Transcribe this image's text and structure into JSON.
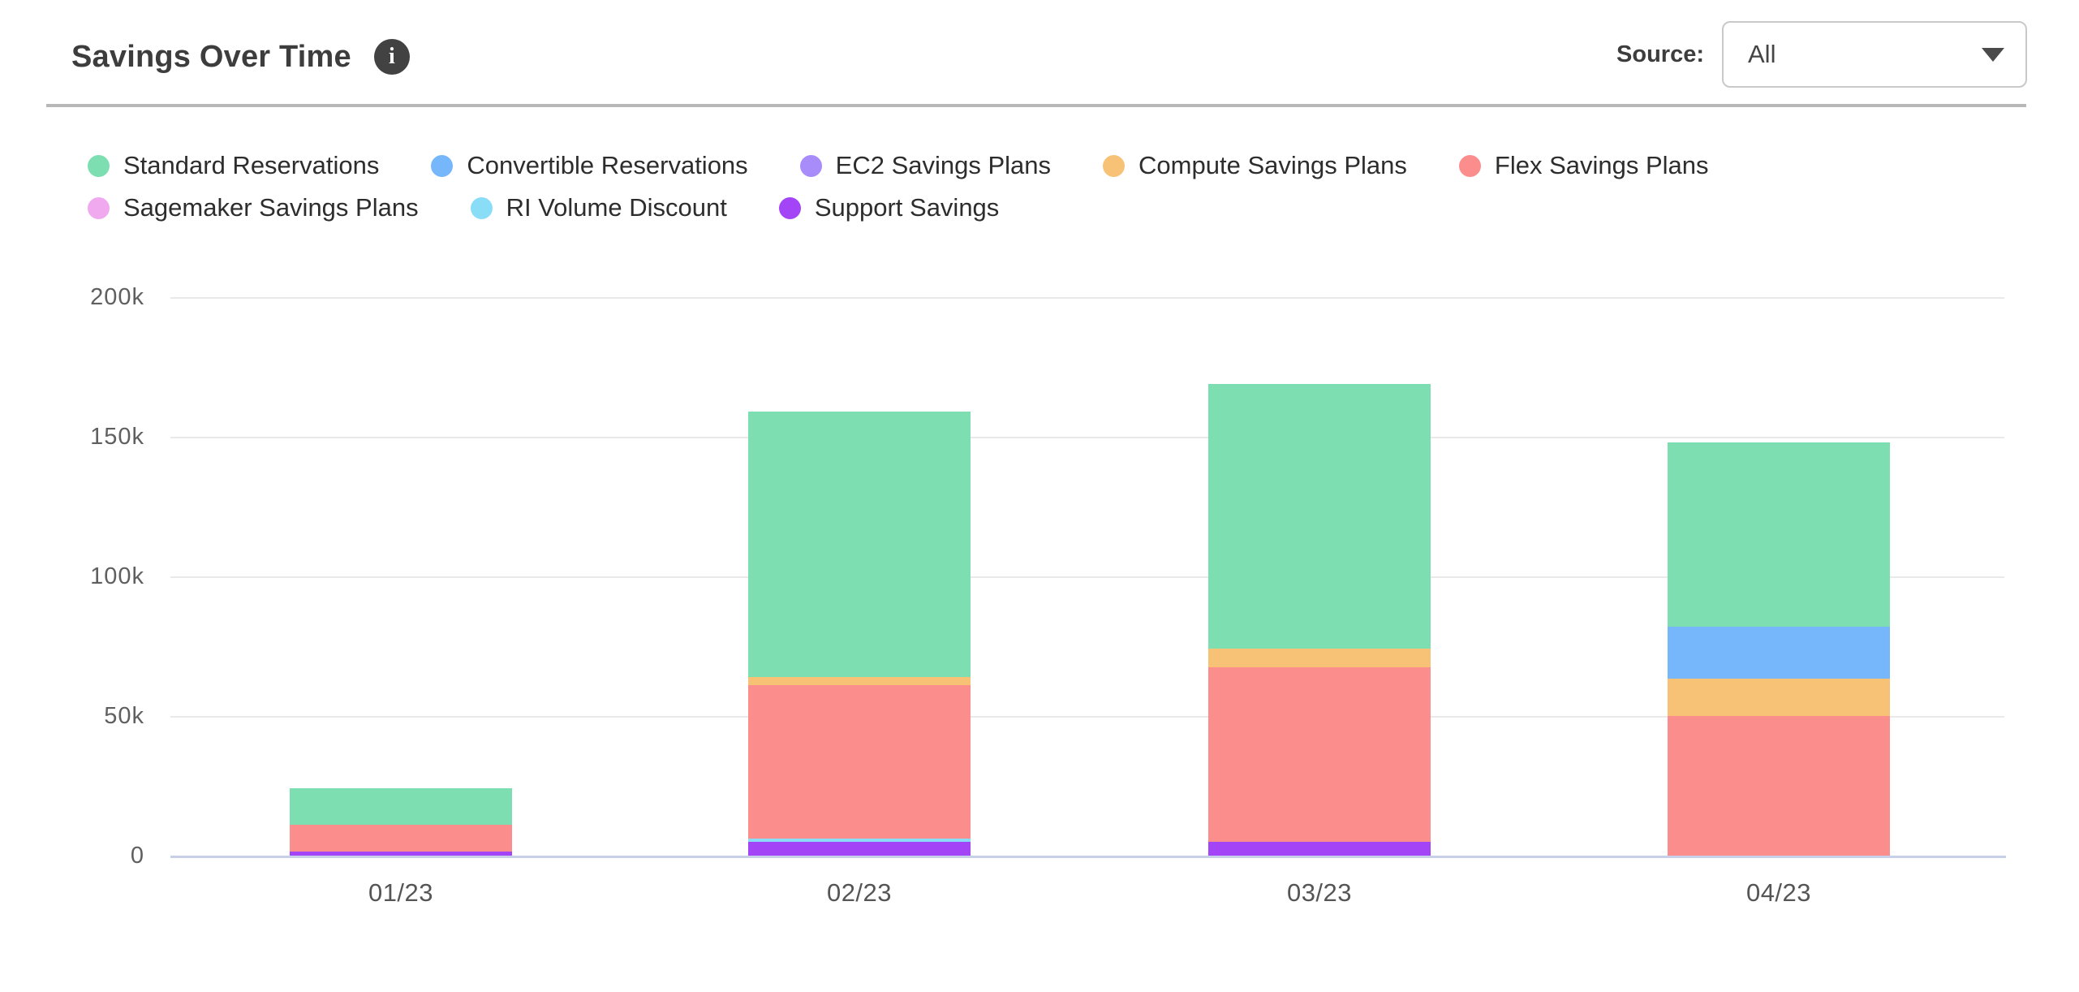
{
  "header": {
    "title": "Savings Over Time",
    "source_label": "Source:",
    "source_value": "All",
    "info_glyph": "i"
  },
  "legend_note": "two rows, top-left; dots colored per series",
  "chart_data": {
    "type": "bar",
    "stacked": true,
    "title": "Savings Over Time",
    "categories": [
      "01/23",
      "02/23",
      "03/23",
      "04/23"
    ],
    "values_unit": "thousands of dollars (k)",
    "series": [
      {
        "name": "Standard Reservations",
        "color": "#7DDEB1",
        "values_k": [
          13,
          95,
          95,
          66
        ]
      },
      {
        "name": "Convertible Reservations",
        "color": "#76B7FB",
        "values_k": [
          0,
          0,
          0,
          18.5
        ]
      },
      {
        "name": "EC2 Savings Plans",
        "color": "#A78CFA",
        "values_k": [
          0,
          0,
          0,
          0
        ]
      },
      {
        "name": "Compute Savings Plans",
        "color": "#F8C276",
        "values_k": [
          0,
          3,
          6.5,
          13.5
        ]
      },
      {
        "name": "Flex Savings Plans",
        "color": "#FB8D8D",
        "values_k": [
          9.5,
          55,
          62.5,
          50
        ]
      },
      {
        "name": "Sagemaker Savings Plans",
        "color": "#F0A9EF",
        "values_k": [
          0,
          0,
          0,
          0
        ]
      },
      {
        "name": "RI Volume Discount",
        "color": "#8ADDF7",
        "values_k": [
          0,
          1,
          0,
          0
        ]
      },
      {
        "name": "Support Savings",
        "color": "#A344F7",
        "values_k": [
          1.5,
          5,
          5,
          0
        ]
      }
    ],
    "totals_k": [
      24,
      159,
      169,
      148
    ],
    "stack_order": "bottom-to-top is reverse of legend order: Support, RI Volume, Sagemaker, EC2, Flex, Compute, Convertible, Standard",
    "yticks": [
      {
        "label": "200k",
        "k": 200
      },
      {
        "label": "150k",
        "k": 150
      },
      {
        "label": "100k",
        "k": 100
      },
      {
        "label": "50k",
        "k": 50
      },
      {
        "label": "0",
        "k": 0
      }
    ],
    "ylim_k": [
      0,
      200
    ],
    "xlabel": "",
    "ylabel": "",
    "grid": "horizontal gridlines on",
    "legend_position": "top-left"
  },
  "colors": {
    "gridline": "#e9e9e9",
    "axis_baseline": "#c7cfe9",
    "tick_text": "#5f5f5f",
    "legend_text": "#2d2d2d",
    "title_text": "#3d3d3d",
    "divider": "#b8b8b8",
    "info_badge_bg": "#424242",
    "dropdown_border": "#c9c9c9"
  }
}
